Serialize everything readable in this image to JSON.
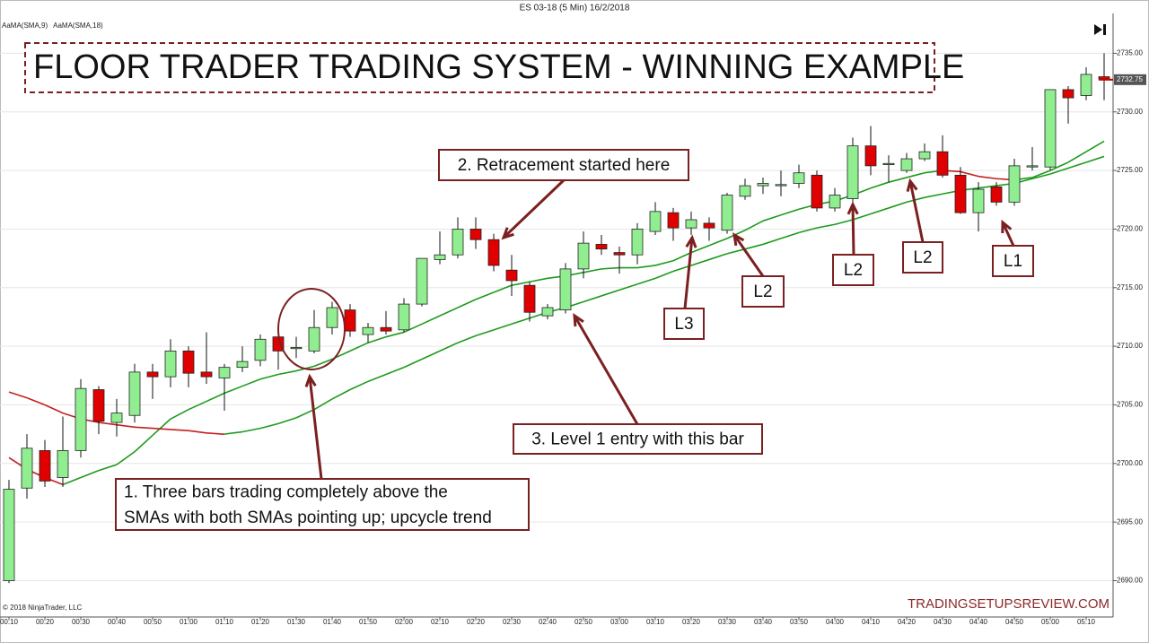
{
  "chart_data": {
    "type": "candlestick",
    "header": "ES 03-18 (5 Min)  16/2/2018",
    "title": "FLOOR TRADER TRADING SYSTEM - WINNING EXAMPLE",
    "copyright": "© 2018 NinjaTrader, LLC",
    "watermark": "TRADINGSETUPSREVIEW.COM",
    "categories": [
      "00:10",
      null,
      "00:20",
      null,
      "00:30",
      null,
      "00:40",
      null,
      "00:50",
      null,
      "01:00",
      null,
      "01:10",
      null,
      "01:20",
      null,
      "01:30",
      null,
      "01:40",
      null,
      "01:50",
      null,
      "02:00",
      null,
      "02:10",
      null,
      "02:20",
      null,
      "02:30",
      null,
      "02:40",
      null,
      "02:50",
      null,
      "03:00",
      null,
      "03:10",
      null,
      "03:20",
      null,
      "03:30",
      null,
      "03:40",
      null,
      "03:50",
      null,
      "04:00",
      null,
      "04:10",
      null,
      "04:20",
      null,
      "04:30",
      null,
      "04:40",
      null,
      "04:50",
      null,
      "05:00",
      null,
      "05:10",
      null
    ],
    "open": [
      2690.0,
      2697.9,
      2701.1,
      2698.8,
      2701.1,
      2706.3,
      2703.5,
      2704.1,
      2707.8,
      2707.4,
      2709.6,
      2707.8,
      2707.3,
      2708.2,
      2708.8,
      2710.8,
      2709.8,
      2709.6,
      2711.6,
      2713.1,
      2711.0,
      2711.6,
      2711.4,
      2713.6,
      2717.4,
      2717.8,
      2720.0,
      2719.1,
      2716.5,
      2715.2,
      2712.6,
      2713.1,
      2716.6,
      2718.7,
      2718.0,
      2717.8,
      2719.8,
      2721.4,
      2720.1,
      2720.5,
      2719.9,
      2722.8,
      2723.7,
      2723.7,
      2723.9,
      2724.6,
      2721.8,
      2722.6,
      2727.1,
      2725.5,
      2725.0,
      2726.0,
      2726.6,
      2724.6,
      2721.4,
      2723.6,
      2722.3,
      2725.3,
      2725.3,
      2731.9,
      2731.4,
      2733.0
    ],
    "high": [
      2698.6,
      2702.5,
      2702.0,
      2704.0,
      2707.2,
      2706.6,
      2705.5,
      2708.5,
      2708.5,
      2710.6,
      2710.0,
      2711.2,
      2708.5,
      2710.0,
      2711.0,
      2711.0,
      2710.8,
      2713.1,
      2713.8,
      2713.6,
      2712.0,
      2713.0,
      2714.1,
      2717.5,
      2719.8,
      2721.0,
      2721.0,
      2719.6,
      2717.8,
      2715.5,
      2713.6,
      2717.1,
      2719.8,
      2719.5,
      2718.5,
      2720.5,
      2722.3,
      2721.8,
      2721.5,
      2721.0,
      2723.1,
      2724.3,
      2724.4,
      2725.0,
      2725.5,
      2725.0,
      2723.5,
      2727.8,
      2728.8,
      2726.3,
      2726.5,
      2727.3,
      2728.0,
      2725.3,
      2724.0,
      2724.0,
      2726.0,
      2727.0,
      2731.9,
      2732.2,
      2733.8,
      2735.0
    ],
    "low": [
      2689.8,
      2697.0,
      2698.0,
      2698.0,
      2700.5,
      2702.5,
      2702.3,
      2703.5,
      2705.5,
      2706.5,
      2706.5,
      2706.8,
      2704.5,
      2707.8,
      2708.3,
      2708.0,
      2709.0,
      2709.4,
      2711.0,
      2710.8,
      2710.3,
      2711.0,
      2711.2,
      2713.4,
      2717.0,
      2717.5,
      2718.3,
      2716.4,
      2714.3,
      2712.1,
      2712.3,
      2712.8,
      2715.8,
      2717.8,
      2716.2,
      2717.0,
      2719.5,
      2719.0,
      2719.5,
      2719.0,
      2719.6,
      2722.5,
      2723.0,
      2722.8,
      2723.5,
      2721.5,
      2721.5,
      2722.3,
      2724.6,
      2724.0,
      2724.8,
      2725.8,
      2724.4,
      2721.3,
      2719.8,
      2722.0,
      2722.0,
      2725.0,
      2725.0,
      2729.0,
      2731.0,
      2731.0
    ],
    "close": [
      2697.8,
      2701.3,
      2698.5,
      2701.1,
      2706.4,
      2703.6,
      2704.3,
      2707.8,
      2707.4,
      2709.6,
      2707.7,
      2707.4,
      2708.2,
      2708.7,
      2710.6,
      2709.6,
      2709.9,
      2711.6,
      2713.3,
      2711.3,
      2711.6,
      2711.3,
      2713.6,
      2717.5,
      2717.8,
      2720.0,
      2719.1,
      2716.9,
      2715.6,
      2712.9,
      2713.3,
      2716.6,
      2718.8,
      2718.3,
      2717.8,
      2720.0,
      2721.5,
      2720.1,
      2720.8,
      2720.1,
      2722.9,
      2723.7,
      2723.9,
      2723.8,
      2724.8,
      2721.8,
      2722.9,
      2727.1,
      2725.4,
      2725.6,
      2726.0,
      2726.6,
      2724.6,
      2721.4,
      2723.4,
      2722.3,
      2725.4,
      2725.4,
      2731.9,
      2731.2,
      2733.2,
      2732.8
    ],
    "up_color": "#90ee90",
    "down_color": "#e00000",
    "series": [
      {
        "name": "AaMA(SMA,9)",
        "color": "#1e9a1e",
        "falling_color": "#c42020",
        "values": [
          2700.5,
          2699.5,
          2698.8,
          2698.2,
          2698.8,
          2699.4,
          2699.9,
          2701.0,
          2702.4,
          2703.8,
          2704.6,
          2705.3,
          2706.0,
          2706.6,
          2707.2,
          2707.6,
          2707.9,
          2708.3,
          2708.9,
          2709.6,
          2710.3,
          2710.8,
          2711.2,
          2711.9,
          2712.6,
          2713.3,
          2714.0,
          2714.6,
          2715.2,
          2715.5,
          2715.8,
          2716.0,
          2716.3,
          2716.6,
          2716.7,
          2716.7,
          2716.9,
          2717.3,
          2718.0,
          2718.6,
          2719.2,
          2719.9,
          2720.7,
          2721.2,
          2721.7,
          2722.1,
          2722.4,
          2722.9,
          2723.5,
          2724.0,
          2724.4,
          2724.8,
          2725.0,
          2724.9,
          2724.5,
          2724.3,
          2724.2,
          2724.4,
          2725.0,
          2725.7,
          2726.6,
          2727.5
        ]
      },
      {
        "name": "AaMA(SMA,18)",
        "color": "#1e9a1e",
        "falling_color": "#c42020",
        "values": [
          2706.1,
          2705.6,
          2705.0,
          2704.3,
          2703.8,
          2703.5,
          2703.3,
          2703.1,
          2703.0,
          2702.9,
          2702.8,
          2702.6,
          2702.5,
          2702.7,
          2703.0,
          2703.4,
          2703.9,
          2704.6,
          2705.5,
          2706.3,
          2707.0,
          2707.6,
          2708.2,
          2708.9,
          2709.6,
          2710.3,
          2710.9,
          2711.4,
          2711.9,
          2712.4,
          2712.9,
          2713.3,
          2713.8,
          2714.3,
          2714.8,
          2715.3,
          2715.8,
          2716.4,
          2716.9,
          2717.4,
          2717.9,
          2718.3,
          2718.7,
          2719.2,
          2719.7,
          2720.1,
          2720.4,
          2720.8,
          2721.3,
          2721.8,
          2722.3,
          2722.7,
          2723.0,
          2723.3,
          2723.5,
          2723.7,
          2723.9,
          2724.3,
          2724.7,
          2725.2,
          2725.7,
          2726.2
        ]
      }
    ],
    "last_price": 2732.75,
    "ylim": [
      2686.9,
      2738.4
    ],
    "yticks": [
      {
        "value": 2690,
        "label": "2690.00"
      },
      {
        "value": 2695,
        "label": "2695.00"
      },
      {
        "value": 2700,
        "label": "2700.00"
      },
      {
        "value": 2705,
        "label": "2705.00"
      },
      {
        "value": 2710,
        "label": "2710.00"
      },
      {
        "value": 2715,
        "label": "2715.00"
      },
      {
        "value": 2720,
        "label": "2720.00"
      },
      {
        "value": 2725,
        "label": "2725.00"
      },
      {
        "value": 2730,
        "label": "2730.00"
      },
      {
        "value": 2735,
        "label": "2735.00"
      }
    ],
    "grid": true,
    "annotations": [
      {
        "lines": [
          "1. Three bars trading completely above the",
          "SMAs with both SMAs pointing up; upcycle trend"
        ]
      },
      {
        "lines": [
          "2. Retracement started here"
        ]
      },
      {
        "lines": [
          "3. Level 1 entry with this bar"
        ]
      },
      {
        "lines": [
          "L3"
        ]
      },
      {
        "lines": [
          "L2"
        ]
      },
      {
        "lines": [
          "L2"
        ]
      },
      {
        "lines": [
          "L2"
        ]
      },
      {
        "lines": [
          "L1"
        ]
      }
    ]
  }
}
